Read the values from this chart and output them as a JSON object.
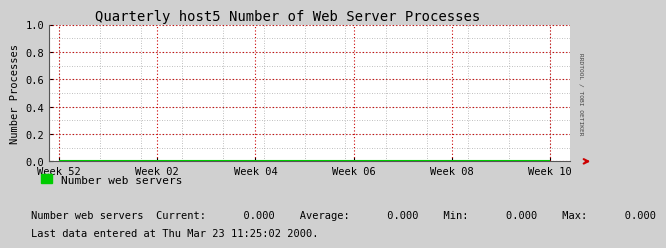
{
  "title": "Quarterly host5 Number of Web Server Processes",
  "ylabel": "Number Processes",
  "x_tick_labels": [
    "Week 52",
    "Week 02",
    "Week 04",
    "Week 06",
    "Week 08",
    "Week 10"
  ],
  "ylim": [
    0.0,
    1.0
  ],
  "yticks": [
    0.0,
    0.2,
    0.4,
    0.6,
    0.8,
    1.0
  ],
  "bg_color": "#d0d0d0",
  "plot_bg_color": "#ffffff",
  "grid_color_major": "#cc0000",
  "grid_color_minor": "#aaaaaa",
  "line_color": "#00cc00",
  "arrow_color": "#cc0000",
  "legend_label": "Number web servers",
  "legend_color": "#00cc00",
  "stats_line": "Number web servers  Current:      0.000    Average:      0.000    Min:      0.000    Max:      0.000",
  "footer_line": "Last data entered at Thu Mar 23 11:25:02 2000.",
  "right_label": "RRDTOOL / TOBI OETIKER",
  "title_fontsize": 10,
  "axis_fontsize": 7.5,
  "legend_fontsize": 8,
  "stats_fontsize": 7.5,
  "footer_fontsize": 7.5
}
